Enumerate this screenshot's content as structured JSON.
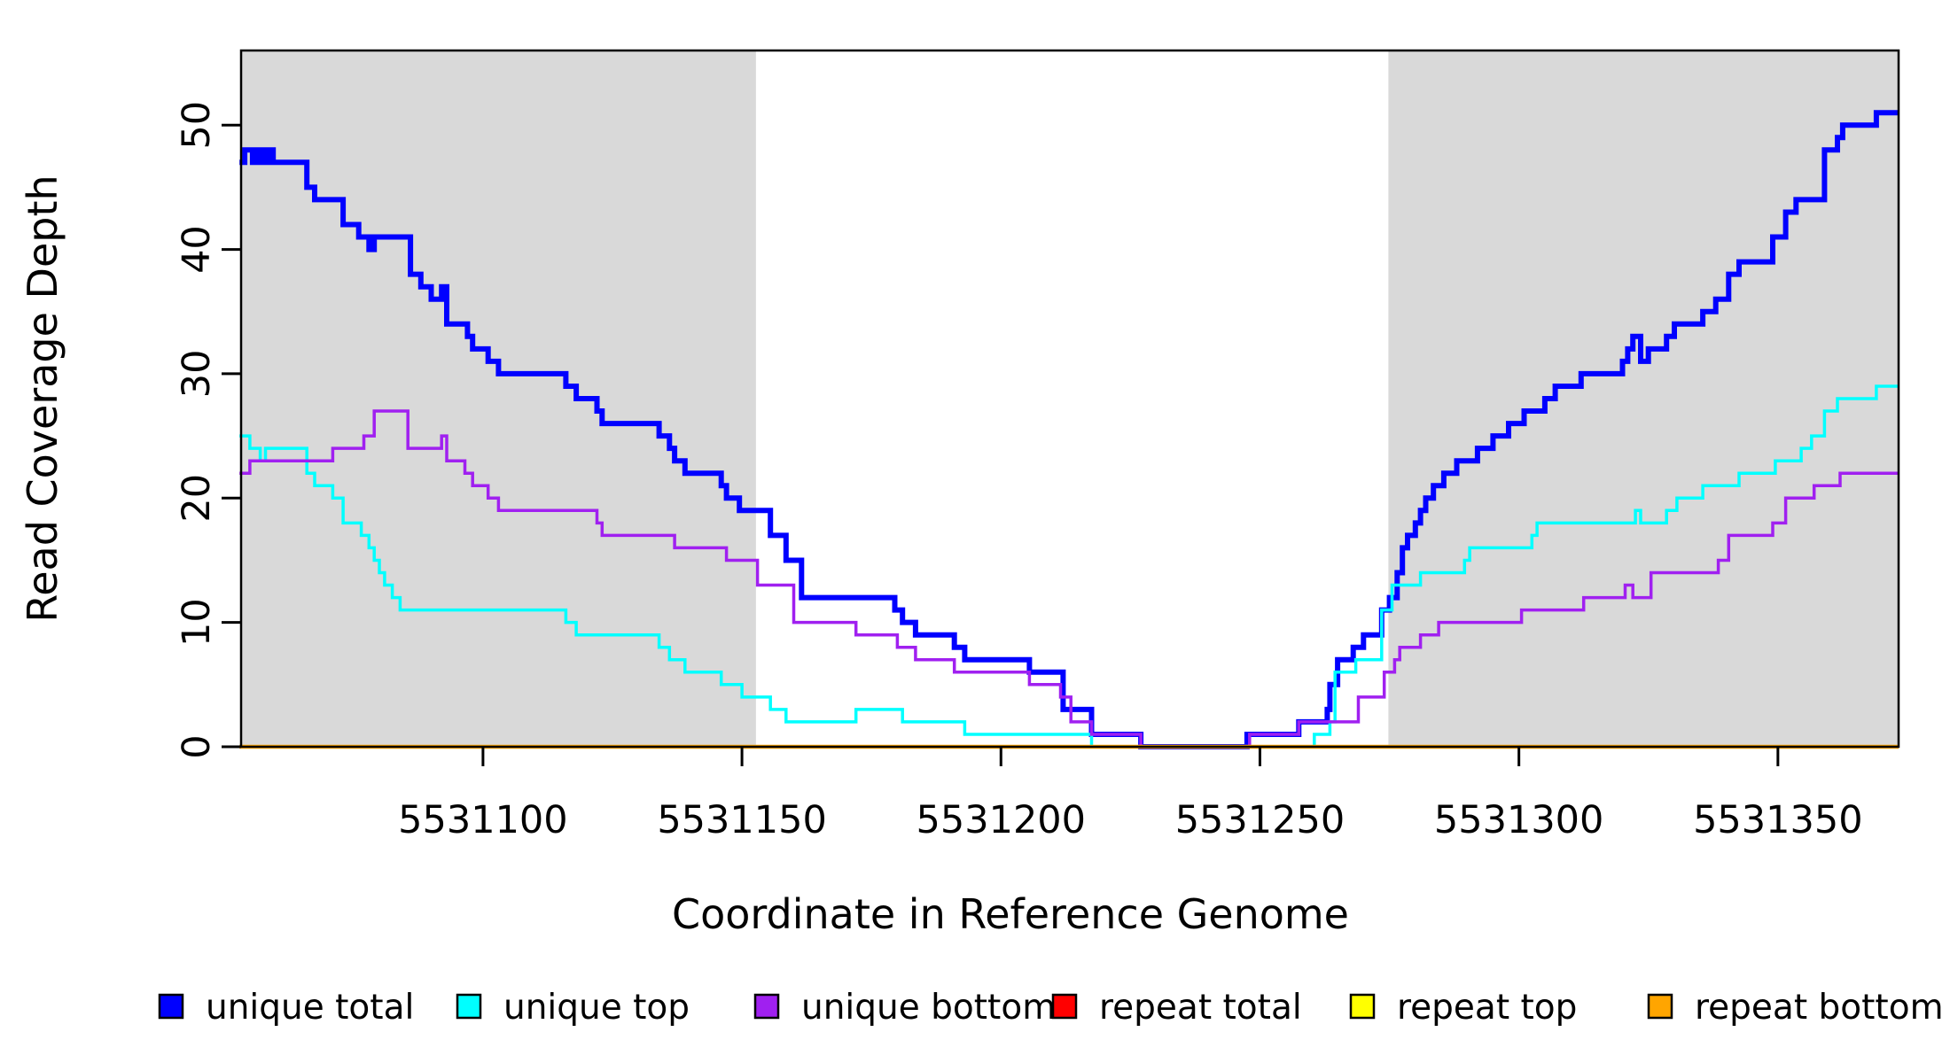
{
  "chart_data": {
    "type": "line",
    "subtype": "step-after",
    "title": "",
    "xlabel": "Coordinate in Reference Genome",
    "ylabel": "Read Coverage Depth",
    "xlim": [
      5531053.3,
      5531373.3
    ],
    "ylim": [
      0,
      56
    ],
    "grid": false,
    "x_ticks": [
      5531100,
      5531150,
      5531200,
      5531250,
      5531300,
      5531350
    ],
    "x_tick_labels": [
      "5531100",
      "5531150",
      "5531200",
      "5531250",
      "5531300",
      "5531350"
    ],
    "y_ticks": [
      0,
      10,
      20,
      30,
      40,
      50
    ],
    "y_tick_labels": [
      "0",
      "10",
      "20",
      "30",
      "40",
      "50"
    ],
    "shaded_region_color": "#d9d9d9",
    "shaded_regions": [
      {
        "x0": 5531053.3,
        "x1": 5531152.7
      },
      {
        "x0": 5531274.8,
        "x1": 5531373.3
      }
    ],
    "legend_position": "bottom",
    "series": [
      {
        "name": "unique total",
        "color": "#0000ff",
        "width": 6,
        "points": [
          [
            5531053,
            47
          ],
          [
            5531054,
            48
          ],
          [
            5531055.5,
            47
          ],
          [
            5531056.5,
            48
          ],
          [
            5531057.5,
            47
          ],
          [
            5531058.5,
            48
          ],
          [
            5531059.5,
            47
          ],
          [
            5531066,
            45
          ],
          [
            5531067.5,
            44
          ],
          [
            5531073,
            42
          ],
          [
            5531076,
            41
          ],
          [
            5531078,
            40
          ],
          [
            5531079,
            41
          ],
          [
            5531086,
            38
          ],
          [
            5531088,
            37
          ],
          [
            5531090,
            36
          ],
          [
            5531092,
            37
          ],
          [
            5531093,
            34
          ],
          [
            5531097,
            33
          ],
          [
            5531098,
            32
          ],
          [
            5531101,
            31
          ],
          [
            5531103,
            30
          ],
          [
            5531116,
            29
          ],
          [
            5531118,
            28
          ],
          [
            5531122,
            27
          ],
          [
            5531123,
            26
          ],
          [
            5531134,
            25
          ],
          [
            5531136,
            24
          ],
          [
            5531137,
            23
          ],
          [
            5531139,
            22
          ],
          [
            5531146,
            21
          ],
          [
            5531147,
            20
          ],
          [
            5531149.5,
            19
          ],
          [
            5531155.5,
            17
          ],
          [
            5531158.5,
            15
          ],
          [
            5531161.5,
            12
          ],
          [
            5531179.5,
            11
          ],
          [
            5531181,
            10
          ],
          [
            5531183.5,
            9
          ],
          [
            5531191,
            8
          ],
          [
            5531193,
            7
          ],
          [
            5531205.5,
            6
          ],
          [
            5531212,
            3
          ],
          [
            5531217.5,
            1
          ],
          [
            5531227,
            0
          ],
          [
            5531247.5,
            1
          ],
          [
            5531257.5,
            2
          ],
          [
            5531263,
            3
          ],
          [
            5531263.5,
            5
          ],
          [
            5531265,
            7
          ],
          [
            5531268,
            8
          ],
          [
            5531270,
            9
          ],
          [
            5531273.5,
            11
          ],
          [
            5531275,
            12
          ],
          [
            5531276.5,
            14
          ],
          [
            5531277.5,
            16
          ],
          [
            5531278.5,
            17
          ],
          [
            5531280,
            18
          ],
          [
            5531281,
            19
          ],
          [
            5531282,
            20
          ],
          [
            5531283.5,
            21
          ],
          [
            5531285.5,
            22
          ],
          [
            5531288,
            23
          ],
          [
            5531292,
            24
          ],
          [
            5531295,
            25
          ],
          [
            5531298,
            26
          ],
          [
            5531301,
            27
          ],
          [
            5531305,
            28
          ],
          [
            5531307,
            29
          ],
          [
            5531312,
            30
          ],
          [
            5531320,
            31
          ],
          [
            5531321,
            32
          ],
          [
            5531322,
            33
          ],
          [
            5531323.5,
            31
          ],
          [
            5531325,
            32
          ],
          [
            5531328.5,
            33
          ],
          [
            5531330,
            34
          ],
          [
            5531335.5,
            35
          ],
          [
            5531338,
            36
          ],
          [
            5531340.5,
            38
          ],
          [
            5531342.5,
            39
          ],
          [
            5531349,
            41
          ],
          [
            5531351.5,
            43
          ],
          [
            5531353.5,
            44
          ],
          [
            5531359,
            48
          ],
          [
            5531361.5,
            49
          ],
          [
            5531362.5,
            50
          ],
          [
            5531369,
            51
          ]
        ]
      },
      {
        "name": "unique top",
        "color": "#00ffff",
        "width": 3.5,
        "points": [
          [
            5531053,
            25
          ],
          [
            5531055,
            24
          ],
          [
            5531057,
            23
          ],
          [
            5531058,
            24
          ],
          [
            5531066,
            22
          ],
          [
            5531067.5,
            21
          ],
          [
            5531071,
            20
          ],
          [
            5531073,
            18
          ],
          [
            5531076.5,
            17
          ],
          [
            5531078,
            16
          ],
          [
            5531079,
            15
          ],
          [
            5531080,
            14
          ],
          [
            5531081,
            13
          ],
          [
            5531082.5,
            12
          ],
          [
            5531084,
            11
          ],
          [
            5531116,
            10
          ],
          [
            5531118,
            9
          ],
          [
            5531134,
            8
          ],
          [
            5531136,
            7
          ],
          [
            5531139,
            6
          ],
          [
            5531146,
            5
          ],
          [
            5531150,
            4
          ],
          [
            5531155.5,
            3
          ],
          [
            5531158.5,
            2
          ],
          [
            5531172,
            3
          ],
          [
            5531181,
            2
          ],
          [
            5531193,
            1
          ],
          [
            5531217.5,
            0
          ],
          [
            5531260.5,
            1
          ],
          [
            5531263.5,
            2
          ],
          [
            5531264.5,
            6
          ],
          [
            5531268.5,
            7
          ],
          [
            5531273.5,
            11
          ],
          [
            5531275.5,
            13
          ],
          [
            5531281,
            14
          ],
          [
            5531289.5,
            15
          ],
          [
            5531290.5,
            16
          ],
          [
            5531302.5,
            17
          ],
          [
            5531303.5,
            18
          ],
          [
            5531322.5,
            19
          ],
          [
            5531323.5,
            18
          ],
          [
            5531328.5,
            19
          ],
          [
            5531330.5,
            20
          ],
          [
            5531335.5,
            21
          ],
          [
            5531342.5,
            22
          ],
          [
            5531349.5,
            23
          ],
          [
            5531354.5,
            24
          ],
          [
            5531356.5,
            25
          ],
          [
            5531359,
            27
          ],
          [
            5531361.5,
            28
          ],
          [
            5531369,
            29
          ]
        ]
      },
      {
        "name": "unique bottom",
        "color": "#a020f0",
        "width": 3.5,
        "points": [
          [
            5531053,
            22
          ],
          [
            5531055,
            23
          ],
          [
            5531071,
            24
          ],
          [
            5531077,
            25
          ],
          [
            5531079,
            27
          ],
          [
            5531085.5,
            24
          ],
          [
            5531092,
            25
          ],
          [
            5531093,
            23
          ],
          [
            5531096.5,
            22
          ],
          [
            5531098,
            21
          ],
          [
            5531101,
            20
          ],
          [
            5531103,
            19
          ],
          [
            5531122,
            18
          ],
          [
            5531123,
            17
          ],
          [
            5531137,
            16
          ],
          [
            5531147,
            15
          ],
          [
            5531153,
            13
          ],
          [
            5531160,
            10
          ],
          [
            5531172,
            9
          ],
          [
            5531180,
            8
          ],
          [
            5531183.5,
            7
          ],
          [
            5531191,
            6
          ],
          [
            5531205.5,
            5
          ],
          [
            5531211.5,
            4
          ],
          [
            5531213.5,
            2
          ],
          [
            5531217.5,
            1
          ],
          [
            5531227,
            0
          ],
          [
            5531248,
            1
          ],
          [
            5531257.5,
            2
          ],
          [
            5531269,
            4
          ],
          [
            5531274,
            6
          ],
          [
            5531276,
            7
          ],
          [
            5531277,
            8
          ],
          [
            5531281,
            9
          ],
          [
            5531284.5,
            10
          ],
          [
            5531300.5,
            11
          ],
          [
            5531312.5,
            12
          ],
          [
            5531320.5,
            13
          ],
          [
            5531322,
            12
          ],
          [
            5531325.5,
            14
          ],
          [
            5531338.5,
            15
          ],
          [
            5531340.5,
            17
          ],
          [
            5531349,
            18
          ],
          [
            5531351.5,
            20
          ],
          [
            5531357,
            21
          ],
          [
            5531362,
            22
          ]
        ]
      },
      {
        "name": "repeat total",
        "color": "#ff0000",
        "width": 3,
        "points": [
          [
            5531053,
            0
          ]
        ]
      },
      {
        "name": "repeat top",
        "color": "#ffff00",
        "width": 3,
        "points": [
          [
            5531053,
            0
          ]
        ]
      },
      {
        "name": "repeat bottom",
        "color": "#ffa500",
        "width": 4.5,
        "points": [
          [
            5531053,
            0
          ]
        ]
      }
    ],
    "legend": [
      {
        "label": "unique total",
        "color": "#0000ff"
      },
      {
        "label": "unique top",
        "color": "#00ffff"
      },
      {
        "label": "unique bottom",
        "color": "#a020f0"
      },
      {
        "label": "repeat total",
        "color": "#ff0000"
      },
      {
        "label": "repeat top",
        "color": "#ffff00"
      },
      {
        "label": "repeat bottom",
        "color": "#ffa500"
      }
    ]
  },
  "axis": {
    "x_title": "Coordinate in Reference Genome",
    "y_title": "Read Coverage Depth"
  }
}
